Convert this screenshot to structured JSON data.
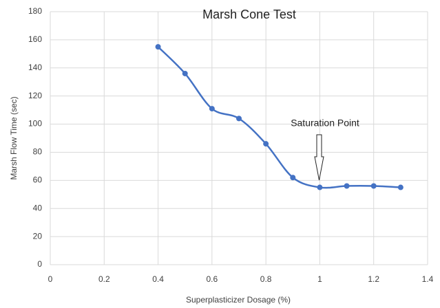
{
  "chart_data": {
    "type": "line",
    "title": "Marsh Cone Test",
    "x_label": "Superplasticizer Dosage (%)",
    "y_label": "Marsh Flow Time (sec)",
    "x": [
      0.4,
      0.5,
      0.6,
      0.7,
      0.8,
      0.9,
      1,
      1.1,
      1.2,
      1.3
    ],
    "values": [
      155,
      136,
      111,
      104,
      86,
      62,
      55,
      56,
      56,
      55
    ],
    "color": "#4472c4",
    "smooth": true,
    "markers": true,
    "grid": true,
    "xlim": [
      0,
      1.4
    ],
    "xticks": [
      0,
      0.2,
      0.4,
      0.6,
      0.8,
      1,
      1.2,
      1.4
    ],
    "ylim": [
      0,
      180
    ],
    "yticks": [
      0,
      20,
      40,
      60,
      80,
      100,
      120,
      140,
      160,
      180
    ],
    "annotations": [
      {
        "text": "Saturation Point"
      }
    ]
  }
}
